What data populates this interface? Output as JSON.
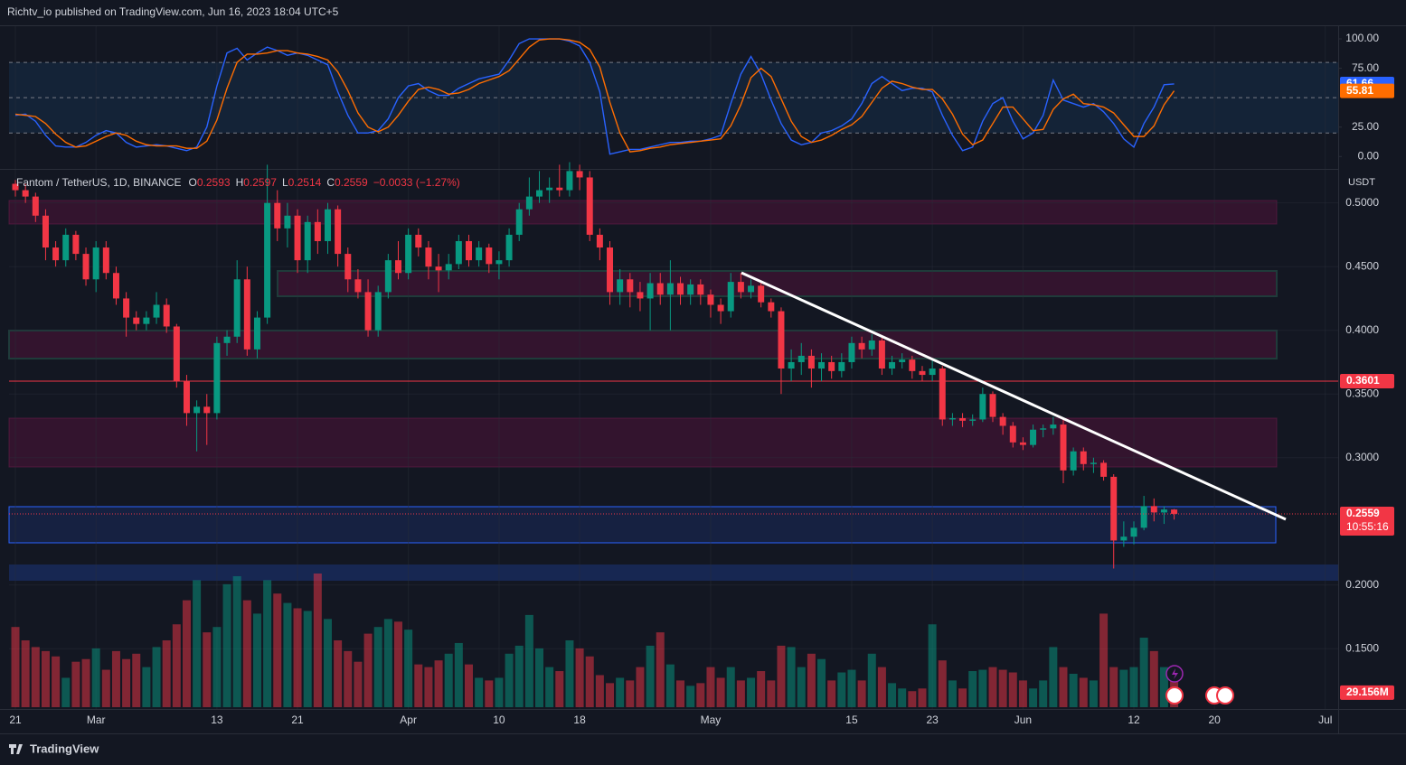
{
  "header": {
    "text": "Richtv_io published on TradingView.com, Jun 16, 2023 18:04 UTC+5"
  },
  "footer": {
    "brand": "TradingView"
  },
  "chart_data": [
    {
      "type": "line",
      "ylim": [
        -9,
        110
      ],
      "yticks": [
        {
          "value": 100,
          "label": "100.00"
        },
        {
          "value": 75,
          "label": "75.00"
        },
        {
          "value": 25,
          "label": "25.00"
        },
        {
          "value": 0,
          "label": "0.00"
        }
      ],
      "bands": [
        80,
        50,
        20
      ],
      "series": [
        {
          "name": "K",
          "color": "#2962ff",
          "values": [
            35,
            36,
            30,
            18,
            9,
            8,
            8,
            12,
            18,
            22,
            20,
            12,
            8,
            9,
            10,
            9,
            7,
            5,
            8,
            25,
            60,
            88,
            92,
            82,
            88,
            93,
            90,
            86,
            88,
            86,
            82,
            78,
            55,
            35,
            20,
            20,
            22,
            32,
            50,
            60,
            62,
            56,
            52,
            52,
            58,
            62,
            66,
            68,
            70,
            82,
            96,
            100,
            100,
            100,
            100,
            98,
            94,
            80,
            55,
            2,
            4,
            6,
            6,
            8,
            10,
            12,
            12,
            13,
            13,
            15,
            18,
            45,
            70,
            85,
            70,
            48,
            28,
            14,
            10,
            12,
            20,
            22,
            26,
            32,
            45,
            62,
            68,
            62,
            56,
            58,
            58,
            55,
            35,
            18,
            5,
            8,
            30,
            45,
            50,
            30,
            15,
            20,
            35,
            65,
            48,
            45,
            42,
            45,
            38,
            28,
            15,
            8,
            28,
            42,
            61,
            61.66
          ]
        },
        {
          "name": "D",
          "color": "#ff6d00",
          "values": [
            36,
            35,
            34,
            28,
            19,
            12,
            8,
            9,
            13,
            17,
            20,
            18,
            13,
            10,
            9,
            9,
            9,
            7,
            7,
            13,
            31,
            58,
            80,
            87,
            87,
            88,
            90,
            90,
            88,
            87,
            85,
            82,
            72,
            56,
            37,
            25,
            21,
            25,
            35,
            47,
            57,
            59,
            57,
            53,
            54,
            57,
            62,
            65,
            68,
            73,
            83,
            93,
            99,
            100,
            100,
            99,
            97,
            91,
            76,
            46,
            20,
            4,
            5,
            7,
            8,
            10,
            11,
            12,
            13,
            14,
            15,
            26,
            44,
            67,
            75,
            68,
            49,
            30,
            17,
            12,
            14,
            18,
            23,
            27,
            34,
            46,
            58,
            64,
            62,
            59,
            57,
            57,
            49,
            36,
            19,
            10,
            14,
            28,
            42,
            42,
            32,
            22,
            23,
            40,
            49,
            53,
            45,
            44,
            42,
            37,
            27,
            17,
            17,
            26,
            44,
            55.81
          ]
        }
      ]
    },
    {
      "type": "candlestick",
      "symbol": "Fantom / TetherUS, 1D, BINANCE",
      "ohlc_labels": [
        "O",
        "H",
        "L",
        "C"
      ],
      "change": "−0.0033 (−1.27%)",
      "currency": "USDT",
      "level": 0.3601,
      "level_color": "#f23645",
      "countdown": "10:55:16",
      "up_color": "#089981",
      "down_color": "#f23645",
      "ylim": [
        0.102,
        0.526
      ],
      "xlim": [
        -0.63,
        131.28
      ],
      "yticks": [
        {
          "value": 0.5,
          "label": "0.5000"
        },
        {
          "value": 0.45,
          "label": "0.4500"
        },
        {
          "value": 0.4,
          "label": "0.4000"
        },
        {
          "value": 0.35,
          "label": "0.3500"
        },
        {
          "value": 0.3,
          "label": "0.3000"
        },
        {
          "value": 0.2,
          "label": "0.2000"
        },
        {
          "value": 0.15,
          "label": "0.1500"
        }
      ],
      "xticks": [
        {
          "value": 0,
          "label": "21"
        },
        {
          "value": 8,
          "label": "Mar"
        },
        {
          "value": 20,
          "label": "13"
        },
        {
          "value": 28,
          "label": "21"
        },
        {
          "value": 39,
          "label": "Apr"
        },
        {
          "value": 48,
          "label": "10"
        },
        {
          "value": 56,
          "label": "18"
        },
        {
          "value": 69,
          "label": "May"
        },
        {
          "value": 83,
          "label": "15"
        },
        {
          "value": 91,
          "label": "23"
        },
        {
          "value": 100,
          "label": "Jun"
        },
        {
          "value": 111,
          "label": "12"
        },
        {
          "value": 119,
          "label": "20"
        },
        {
          "value": 130,
          "label": "Jul"
        }
      ],
      "ohlc": [
        [
          0.515,
          0.518,
          0.505,
          0.51
        ],
        [
          0.51,
          0.515,
          0.5,
          0.505
        ],
        [
          0.505,
          0.508,
          0.485,
          0.49
        ],
        [
          0.49,
          0.495,
          0.455,
          0.465
        ],
        [
          0.465,
          0.47,
          0.45,
          0.455
        ],
        [
          0.455,
          0.48,
          0.45,
          0.475
        ],
        [
          0.475,
          0.478,
          0.455,
          0.46
        ],
        [
          0.46,
          0.465,
          0.435,
          0.44
        ],
        [
          0.44,
          0.47,
          0.43,
          0.465
        ],
        [
          0.465,
          0.47,
          0.44,
          0.445
        ],
        [
          0.445,
          0.45,
          0.42,
          0.425
        ],
        [
          0.425,
          0.43,
          0.395,
          0.41
        ],
        [
          0.41,
          0.415,
          0.4,
          0.405
        ],
        [
          0.405,
          0.415,
          0.4,
          0.41
        ],
        [
          0.41,
          0.43,
          0.405,
          0.42
        ],
        [
          0.42,
          0.425,
          0.398,
          0.403
        ],
        [
          0.403,
          0.405,
          0.355,
          0.36
        ],
        [
          0.36,
          0.365,
          0.325,
          0.335
        ],
        [
          0.335,
          0.345,
          0.305,
          0.34
        ],
        [
          0.34,
          0.35,
          0.31,
          0.335
        ],
        [
          0.335,
          0.395,
          0.33,
          0.39
        ],
        [
          0.39,
          0.4,
          0.38,
          0.395
        ],
        [
          0.395,
          0.455,
          0.39,
          0.44
        ],
        [
          0.44,
          0.45,
          0.38,
          0.385
        ],
        [
          0.385,
          0.415,
          0.378,
          0.41
        ],
        [
          0.41,
          0.53,
          0.405,
          0.5
        ],
        [
          0.5,
          0.51,
          0.47,
          0.48
        ],
        [
          0.48,
          0.5,
          0.465,
          0.49
        ],
        [
          0.49,
          0.495,
          0.445,
          0.455
        ],
        [
          0.455,
          0.49,
          0.445,
          0.485
        ],
        [
          0.485,
          0.495,
          0.46,
          0.47
        ],
        [
          0.47,
          0.5,
          0.46,
          0.495
        ],
        [
          0.495,
          0.498,
          0.45,
          0.46
        ],
        [
          0.46,
          0.465,
          0.43,
          0.44
        ],
        [
          0.44,
          0.448,
          0.425,
          0.43
        ],
        [
          0.43,
          0.44,
          0.395,
          0.4
        ],
        [
          0.4,
          0.435,
          0.395,
          0.43
        ],
        [
          0.43,
          0.46,
          0.425,
          0.455
        ],
        [
          0.455,
          0.47,
          0.44,
          0.445
        ],
        [
          0.445,
          0.48,
          0.44,
          0.475
        ],
        [
          0.475,
          0.48,
          0.458,
          0.465
        ],
        [
          0.465,
          0.47,
          0.44,
          0.45
        ],
        [
          0.45,
          0.46,
          0.43,
          0.447
        ],
        [
          0.447,
          0.46,
          0.44,
          0.452
        ],
        [
          0.452,
          0.475,
          0.448,
          0.47
        ],
        [
          0.47,
          0.475,
          0.45,
          0.455
        ],
        [
          0.455,
          0.47,
          0.45,
          0.465
        ],
        [
          0.465,
          0.468,
          0.445,
          0.452
        ],
        [
          0.452,
          0.462,
          0.44,
          0.455
        ],
        [
          0.455,
          0.48,
          0.45,
          0.475
        ],
        [
          0.475,
          0.5,
          0.47,
          0.495
        ],
        [
          0.495,
          0.52,
          0.49,
          0.505
        ],
        [
          0.505,
          0.525,
          0.5,
          0.51
        ],
        [
          0.51,
          0.52,
          0.5,
          0.512
        ],
        [
          0.512,
          0.53,
          0.505,
          0.51
        ],
        [
          0.51,
          0.532,
          0.505,
          0.525
        ],
        [
          0.525,
          0.53,
          0.51,
          0.52
        ],
        [
          0.52,
          0.525,
          0.47,
          0.475
        ],
        [
          0.475,
          0.48,
          0.455,
          0.465
        ],
        [
          0.465,
          0.47,
          0.42,
          0.43
        ],
        [
          0.43,
          0.448,
          0.42,
          0.44
        ],
        [
          0.44,
          0.445,
          0.418,
          0.43
        ],
        [
          0.43,
          0.438,
          0.415,
          0.425
        ],
        [
          0.425,
          0.445,
          0.4,
          0.437
        ],
        [
          0.437,
          0.445,
          0.42,
          0.428
        ],
        [
          0.428,
          0.455,
          0.4,
          0.437
        ],
        [
          0.437,
          0.442,
          0.42,
          0.428
        ],
        [
          0.428,
          0.44,
          0.42,
          0.436
        ],
        [
          0.436,
          0.44,
          0.42,
          0.428
        ],
        [
          0.428,
          0.432,
          0.41,
          0.42
        ],
        [
          0.42,
          0.425,
          0.405,
          0.415
        ],
        [
          0.415,
          0.445,
          0.41,
          0.438
        ],
        [
          0.438,
          0.445,
          0.425,
          0.43
        ],
        [
          0.43,
          0.44,
          0.425,
          0.435
        ],
        [
          0.435,
          0.438,
          0.418,
          0.422
        ],
        [
          0.422,
          0.425,
          0.41,
          0.415
        ],
        [
          0.415,
          0.418,
          0.35,
          0.37
        ],
        [
          0.37,
          0.385,
          0.36,
          0.375
        ],
        [
          0.375,
          0.39,
          0.365,
          0.38
        ],
        [
          0.38,
          0.385,
          0.355,
          0.37
        ],
        [
          0.37,
          0.382,
          0.36,
          0.375
        ],
        [
          0.375,
          0.38,
          0.362,
          0.368
        ],
        [
          0.368,
          0.382,
          0.363,
          0.375
        ],
        [
          0.375,
          0.395,
          0.37,
          0.39
        ],
        [
          0.39,
          0.395,
          0.378,
          0.385
        ],
        [
          0.385,
          0.397,
          0.38,
          0.392
        ],
        [
          0.392,
          0.395,
          0.365,
          0.37
        ],
        [
          0.37,
          0.38,
          0.365,
          0.375
        ],
        [
          0.375,
          0.382,
          0.37,
          0.377
        ],
        [
          0.377,
          0.38,
          0.362,
          0.368
        ],
        [
          0.368,
          0.372,
          0.36,
          0.365
        ],
        [
          0.365,
          0.378,
          0.36,
          0.37
        ],
        [
          0.37,
          0.372,
          0.325,
          0.33
        ],
        [
          0.33,
          0.335,
          0.325,
          0.331
        ],
        [
          0.331,
          0.335,
          0.324,
          0.329
        ],
        [
          0.329,
          0.334,
          0.325,
          0.33
        ],
        [
          0.33,
          0.355,
          0.328,
          0.35
        ],
        [
          0.35,
          0.352,
          0.328,
          0.332
        ],
        [
          0.332,
          0.335,
          0.318,
          0.325
        ],
        [
          0.325,
          0.328,
          0.308,
          0.312
        ],
        [
          0.312,
          0.316,
          0.306,
          0.31
        ],
        [
          0.31,
          0.326,
          0.308,
          0.322
        ],
        [
          0.322,
          0.326,
          0.316,
          0.323
        ],
        [
          0.323,
          0.332,
          0.318,
          0.326
        ],
        [
          0.326,
          0.33,
          0.28,
          0.29
        ],
        [
          0.29,
          0.308,
          0.286,
          0.305
        ],
        [
          0.305,
          0.308,
          0.29,
          0.295
        ],
        [
          0.295,
          0.3,
          0.288,
          0.296
        ],
        [
          0.296,
          0.298,
          0.282,
          0.285
        ],
        [
          0.285,
          0.287,
          0.213,
          0.235
        ],
        [
          0.235,
          0.25,
          0.23,
          0.238
        ],
        [
          0.238,
          0.25,
          0.232,
          0.245
        ],
        [
          0.245,
          0.27,
          0.243,
          0.262
        ],
        [
          0.262,
          0.268,
          0.25,
          0.257
        ],
        [
          0.257,
          0.262,
          0.248,
          0.2593
        ],
        [
          0.2593,
          0.2597,
          0.2514,
          0.2559
        ]
      ],
      "volume": [
        60,
        50,
        45,
        42,
        38,
        22,
        34,
        36,
        44,
        28,
        42,
        36,
        40,
        30,
        45,
        50,
        62,
        80,
        95,
        56,
        60,
        92,
        98,
        80,
        70,
        95,
        85,
        78,
        74,
        72,
        100,
        66,
        50,
        42,
        34,
        55,
        60,
        66,
        64,
        58,
        32,
        30,
        35,
        40,
        48,
        32,
        22,
        20,
        22,
        40,
        46,
        69,
        44,
        30,
        27,
        50,
        44,
        38,
        24,
        18,
        22,
        20,
        30,
        46,
        56,
        32,
        20,
        16,
        18,
        30,
        22,
        30,
        20,
        22,
        27,
        20,
        46,
        45,
        30,
        40,
        36,
        20,
        26,
        28,
        20,
        40,
        30,
        18,
        14,
        12,
        14,
        62,
        35,
        20,
        14,
        27,
        28,
        30,
        28,
        26,
        20,
        14,
        20,
        45,
        30,
        25,
        22,
        20,
        70,
        30,
        28,
        30,
        52,
        42,
        30,
        29.156
      ],
      "last_volume_label": "29.156M"
    }
  ]
}
